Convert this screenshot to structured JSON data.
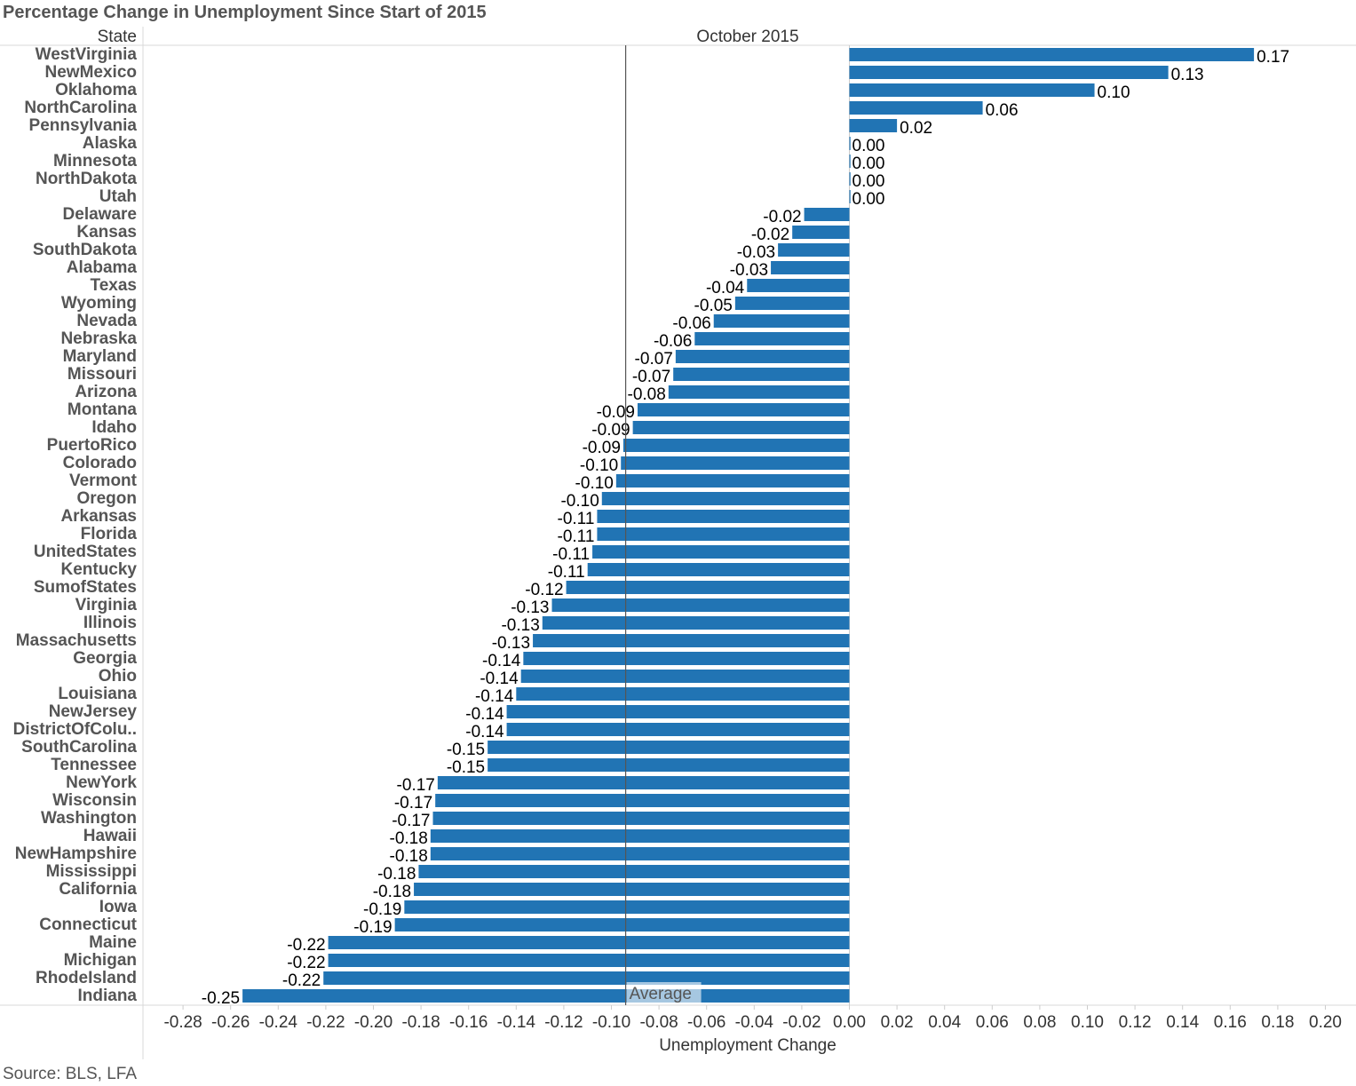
{
  "chart_data": {
    "type": "bar",
    "orientation": "horizontal",
    "title": "Percentage Change in Unemployment Since Start of 2015",
    "category_header": "State",
    "column_header": "October 2015",
    "xlabel": "Unemployment Change",
    "xlim": [
      -0.28,
      0.2
    ],
    "xticks": [
      "-0.28",
      "-0.26",
      "-0.24",
      "-0.22",
      "-0.20",
      "-0.18",
      "-0.16",
      "-0.14",
      "-0.12",
      "-0.10",
      "-0.08",
      "-0.06",
      "-0.04",
      "-0.02",
      "0.00",
      "0.02",
      "0.04",
      "0.06",
      "0.08",
      "0.10",
      "0.12",
      "0.14",
      "0.16",
      "0.18",
      "0.20"
    ],
    "reference_line": {
      "label": "Average",
      "value": -0.094
    },
    "bar_color": "#2174b4",
    "grid": false,
    "source": "Source: BLS, LFA",
    "bars": [
      {
        "label": "WestVirginia",
        "value": 0.17,
        "text": "0.17"
      },
      {
        "label": "NewMexico",
        "value": 0.134,
        "text": "0.13"
      },
      {
        "label": "Oklahoma",
        "value": 0.103,
        "text": "0.10"
      },
      {
        "label": "NorthCarolina",
        "value": 0.056,
        "text": "0.06"
      },
      {
        "label": "Pennsylvania",
        "value": 0.02,
        "text": "0.02"
      },
      {
        "label": "Alaska",
        "value": 0.0,
        "text": "0.00"
      },
      {
        "label": "Minnesota",
        "value": 0.0,
        "text": "0.00"
      },
      {
        "label": "NorthDakota",
        "value": 0.0,
        "text": "0.00"
      },
      {
        "label": "Utah",
        "value": 0.0,
        "text": "0.00"
      },
      {
        "label": "Delaware",
        "value": -0.019,
        "text": "-0.02"
      },
      {
        "label": "Kansas",
        "value": -0.024,
        "text": "-0.02"
      },
      {
        "label": "SouthDakota",
        "value": -0.03,
        "text": "-0.03"
      },
      {
        "label": "Alabama",
        "value": -0.033,
        "text": "-0.03"
      },
      {
        "label": "Texas",
        "value": -0.043,
        "text": "-0.04"
      },
      {
        "label": "Wyoming",
        "value": -0.048,
        "text": "-0.05"
      },
      {
        "label": "Nevada",
        "value": -0.057,
        "text": "-0.06"
      },
      {
        "label": "Nebraska",
        "value": -0.065,
        "text": "-0.06"
      },
      {
        "label": "Maryland",
        "value": -0.073,
        "text": "-0.07"
      },
      {
        "label": "Missouri",
        "value": -0.074,
        "text": "-0.07"
      },
      {
        "label": "Arizona",
        "value": -0.076,
        "text": "-0.08"
      },
      {
        "label": "Montana",
        "value": -0.089,
        "text": "-0.09"
      },
      {
        "label": "Idaho",
        "value": -0.091,
        "text": "-0.09"
      },
      {
        "label": "PuertoRico",
        "value": -0.095,
        "text": "-0.09"
      },
      {
        "label": "Colorado",
        "value": -0.096,
        "text": "-0.10"
      },
      {
        "label": "Vermont",
        "value": -0.098,
        "text": "-0.10"
      },
      {
        "label": "Oregon",
        "value": -0.104,
        "text": "-0.10"
      },
      {
        "label": "Arkansas",
        "value": -0.106,
        "text": "-0.11"
      },
      {
        "label": "Florida",
        "value": -0.106,
        "text": "-0.11"
      },
      {
        "label": "UnitedStates",
        "value": -0.108,
        "text": "-0.11"
      },
      {
        "label": "Kentucky",
        "value": -0.11,
        "text": "-0.11"
      },
      {
        "label": "SumofStates",
        "value": -0.119,
        "text": "-0.12"
      },
      {
        "label": "Virginia",
        "value": -0.125,
        "text": "-0.13"
      },
      {
        "label": "Illinois",
        "value": -0.129,
        "text": "-0.13"
      },
      {
        "label": "Massachusetts",
        "value": -0.133,
        "text": "-0.13"
      },
      {
        "label": "Georgia",
        "value": -0.137,
        "text": "-0.14"
      },
      {
        "label": "Ohio",
        "value": -0.138,
        "text": "-0.14"
      },
      {
        "label": "Louisiana",
        "value": -0.14,
        "text": "-0.14"
      },
      {
        "label": "NewJersey",
        "value": -0.144,
        "text": "-0.14"
      },
      {
        "label": "DistrictOfColu..",
        "value": -0.144,
        "text": "-0.14"
      },
      {
        "label": "SouthCarolina",
        "value": -0.152,
        "text": "-0.15"
      },
      {
        "label": "Tennessee",
        "value": -0.152,
        "text": "-0.15"
      },
      {
        "label": "NewYork",
        "value": -0.173,
        "text": "-0.17"
      },
      {
        "label": "Wisconsin",
        "value": -0.174,
        "text": "-0.17"
      },
      {
        "label": "Washington",
        "value": -0.175,
        "text": "-0.17"
      },
      {
        "label": "Hawaii",
        "value": -0.176,
        "text": "-0.18"
      },
      {
        "label": "NewHampshire",
        "value": -0.176,
        "text": "-0.18"
      },
      {
        "label": "Mississippi",
        "value": -0.181,
        "text": "-0.18"
      },
      {
        "label": "California",
        "value": -0.183,
        "text": "-0.18"
      },
      {
        "label": "Iowa",
        "value": -0.187,
        "text": "-0.19"
      },
      {
        "label": "Connecticut",
        "value": -0.191,
        "text": "-0.19"
      },
      {
        "label": "Maine",
        "value": -0.219,
        "text": "-0.22"
      },
      {
        "label": "Michigan",
        "value": -0.219,
        "text": "-0.22"
      },
      {
        "label": "RhodeIsland",
        "value": -0.221,
        "text": "-0.22"
      },
      {
        "label": "Indiana",
        "value": -0.255,
        "text": "-0.25"
      }
    ]
  }
}
